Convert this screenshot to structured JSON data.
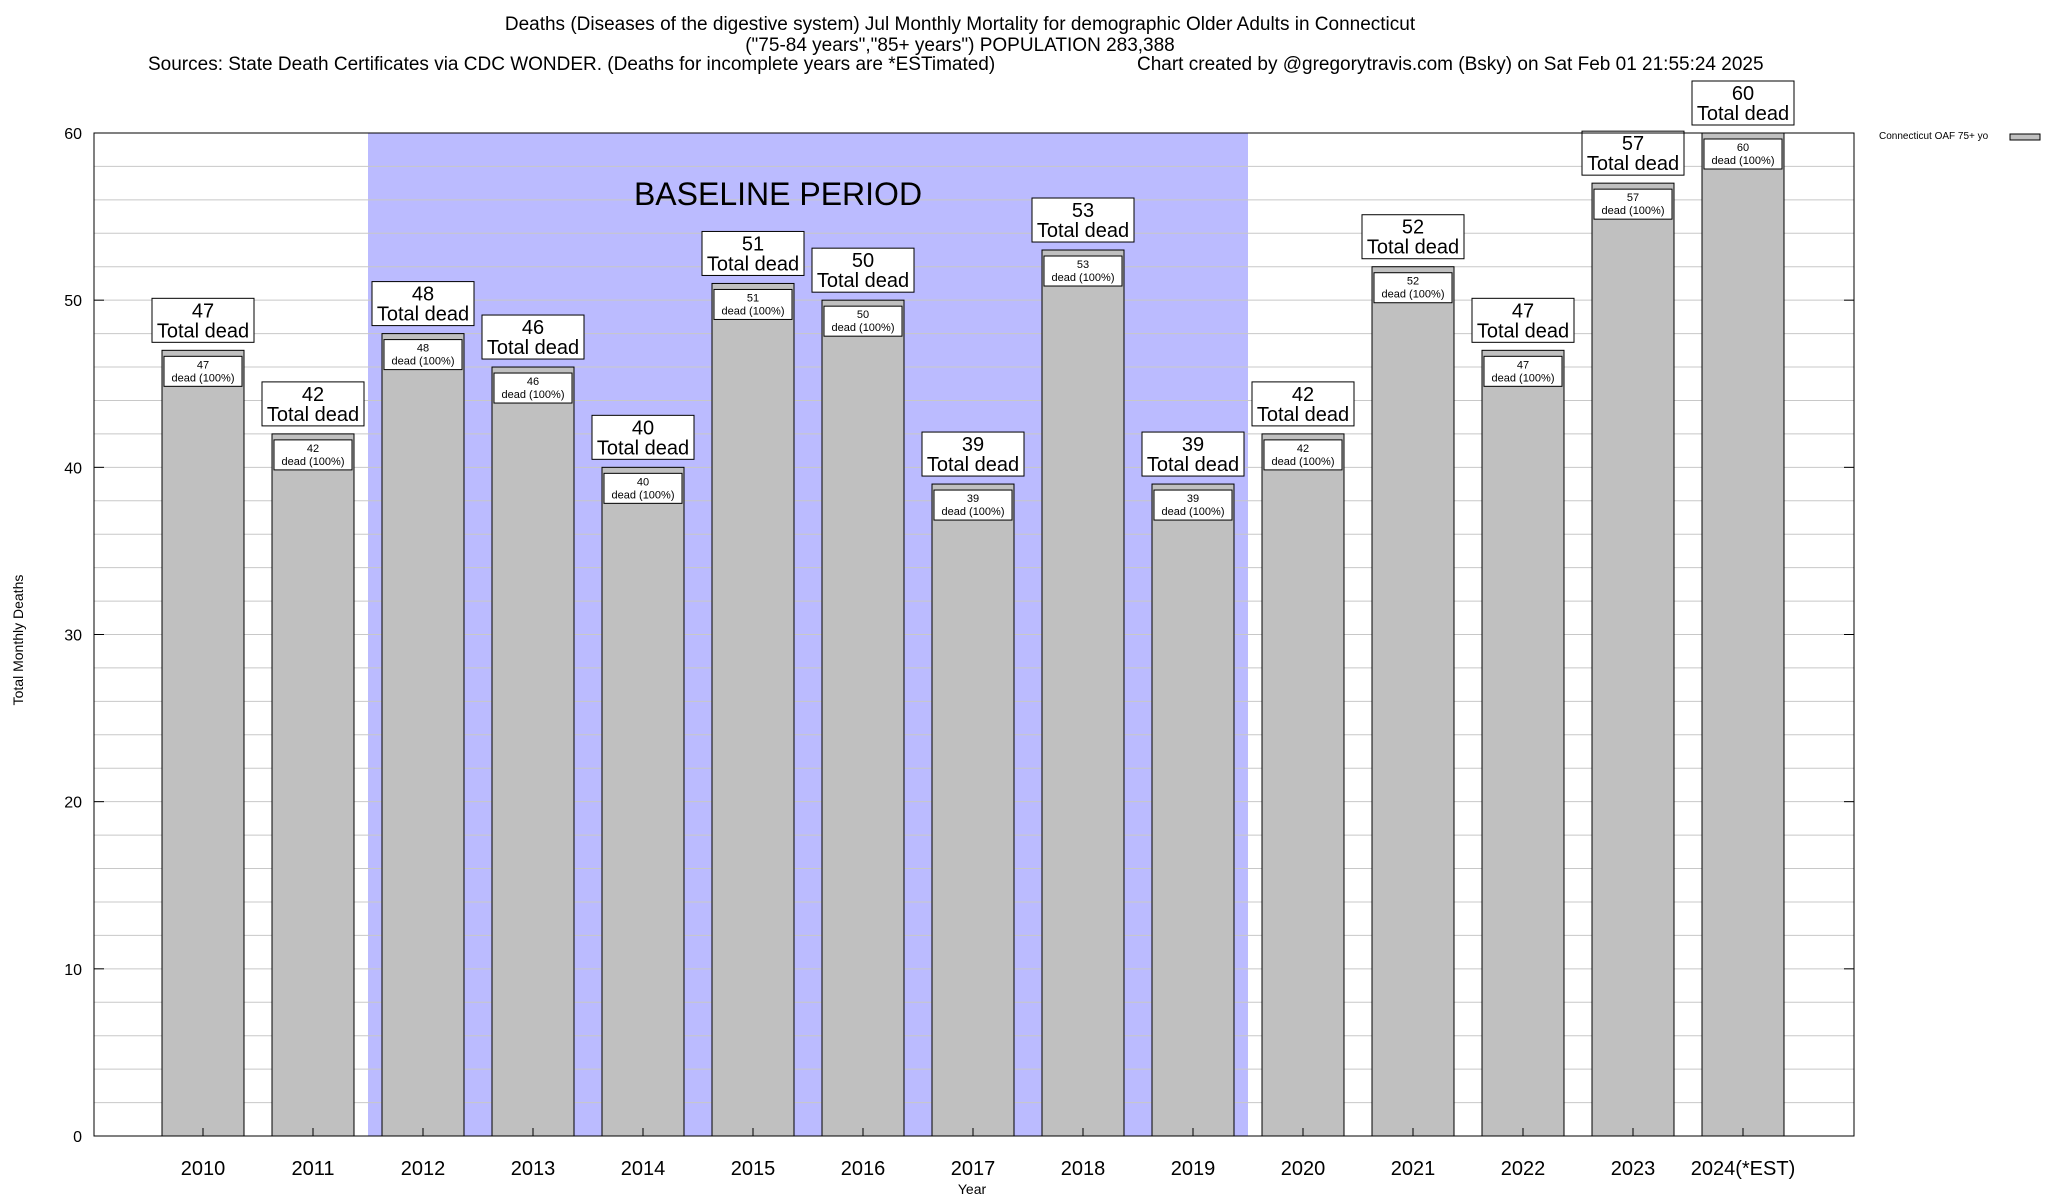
{
  "header": {
    "title_line1": "Deaths (Diseases of the digestive system) Jul Monthly Mortality for demographic Older Adults in Connecticut",
    "title_line2": "(\"75-84 years\",\"85+ years\") POPULATION 283,388",
    "sources": "Sources: State Death Certificates via CDC WONDER. (Deaths for incomplete years are *ESTimated)",
    "credit": "Chart created by @gregorytravis.com (Bsky) on Sat Feb 01 21:55:24 2025"
  },
  "chart_data": {
    "type": "bar",
    "categories": [
      "2010",
      "2011",
      "2012",
      "2013",
      "2014",
      "2015",
      "2016",
      "2017",
      "2018",
      "2019",
      "2020",
      "2021",
      "2022",
      "2023",
      "2024(*EST)"
    ],
    "series": [
      {
        "name": "Connecticut OAF 75+ yo",
        "values": [
          47,
          42,
          48,
          46,
          40,
          51,
          50,
          39,
          53,
          39,
          42,
          52,
          47,
          57,
          60
        ],
        "color": "#c0c0c0"
      }
    ],
    "top_label_suffix": "Total dead",
    "inner_label_suffix": "dead (100%)",
    "xlabel": "Year",
    "ylabel": "Total Monthly Deaths",
    "ylim": [
      0,
      60
    ],
    "yticks": [
      0,
      10,
      20,
      30,
      40,
      50,
      60
    ],
    "grid": true,
    "legend_position": "top-right",
    "baseline_period": {
      "label": "BASELINE PERIOD",
      "start_category": "2012",
      "end_category": "2019",
      "color": "#bbbbff"
    }
  }
}
